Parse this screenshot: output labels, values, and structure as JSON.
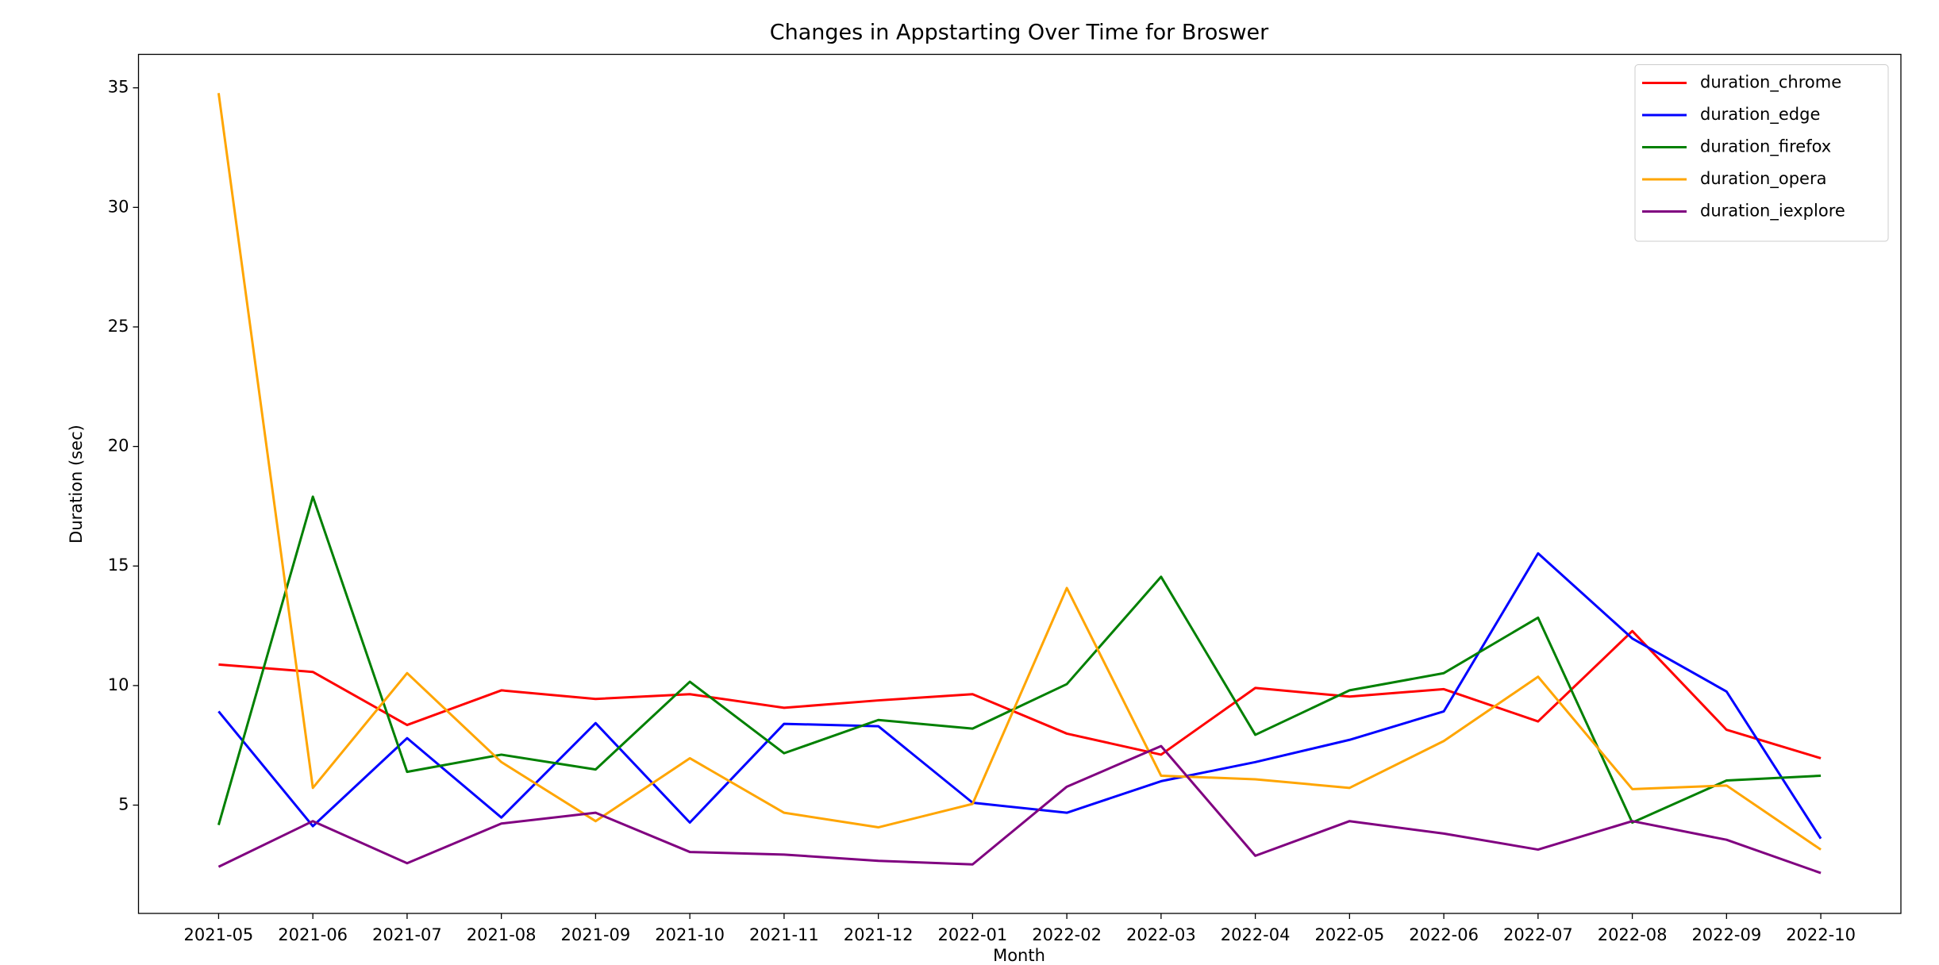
{
  "chart_data": {
    "type": "line",
    "title": "Changes in Appstarting Over Time for Broswer",
    "x_label": "Month",
    "y_label": "Duration (sec)",
    "categories": [
      "2021-05",
      "2021-06",
      "2021-07",
      "2021-08",
      "2021-09",
      "2021-10",
      "2021-11",
      "2021-12",
      "2022-01",
      "2022-02",
      "2022-03",
      "2022-04",
      "2022-05",
      "2022-06",
      "2022-07",
      "2022-08",
      "2022-09",
      "2022-10"
    ],
    "series": [
      {
        "name": "duration_chrome",
        "color": "#ff0000",
        "values": [
          10.88,
          10.57,
          8.35,
          9.8,
          9.44,
          9.64,
          9.07,
          9.38,
          9.64,
          7.99,
          7.11,
          9.9,
          9.54,
          9.85,
          8.5,
          12.28,
          8.15,
          6.96
        ]
      },
      {
        "name": "duration_edge",
        "color": "#0000ff",
        "values": [
          8.92,
          4.12,
          7.8,
          4.48,
          8.43,
          4.27,
          8.4,
          8.3,
          5.1,
          4.68,
          6.0,
          6.8,
          7.73,
          8.92,
          15.53,
          11.97,
          9.75,
          3.6
        ]
      },
      {
        "name": "duration_firefox",
        "color": "#008000",
        "values": [
          4.17,
          17.9,
          6.39,
          7.11,
          6.49,
          10.16,
          7.17,
          8.56,
          8.2,
          10.06,
          14.55,
          7.94,
          9.8,
          10.52,
          12.84,
          4.27,
          6.03,
          6.23
        ]
      },
      {
        "name": "duration_opera",
        "color": "#ffa500",
        "values": [
          34.78,
          5.72,
          10.52,
          6.8,
          4.33,
          6.96,
          4.68,
          4.07,
          5.05,
          14.08,
          6.23,
          6.08,
          5.72,
          7.68,
          10.37,
          5.67,
          5.82,
          3.14
        ]
      },
      {
        "name": "duration_iexplore",
        "color": "#800080",
        "values": [
          2.42,
          4.33,
          2.57,
          4.23,
          4.68,
          3.04,
          2.93,
          2.67,
          2.52,
          5.77,
          7.47,
          2.88,
          4.33,
          3.81,
          3.14,
          4.33,
          3.55,
          2.16
        ]
      }
    ],
    "ylim": [
      0.47,
      36.4
    ],
    "yticks": [
      5,
      10,
      15,
      20,
      25,
      30,
      35
    ],
    "legend": "upper right",
    "grid": false
  }
}
